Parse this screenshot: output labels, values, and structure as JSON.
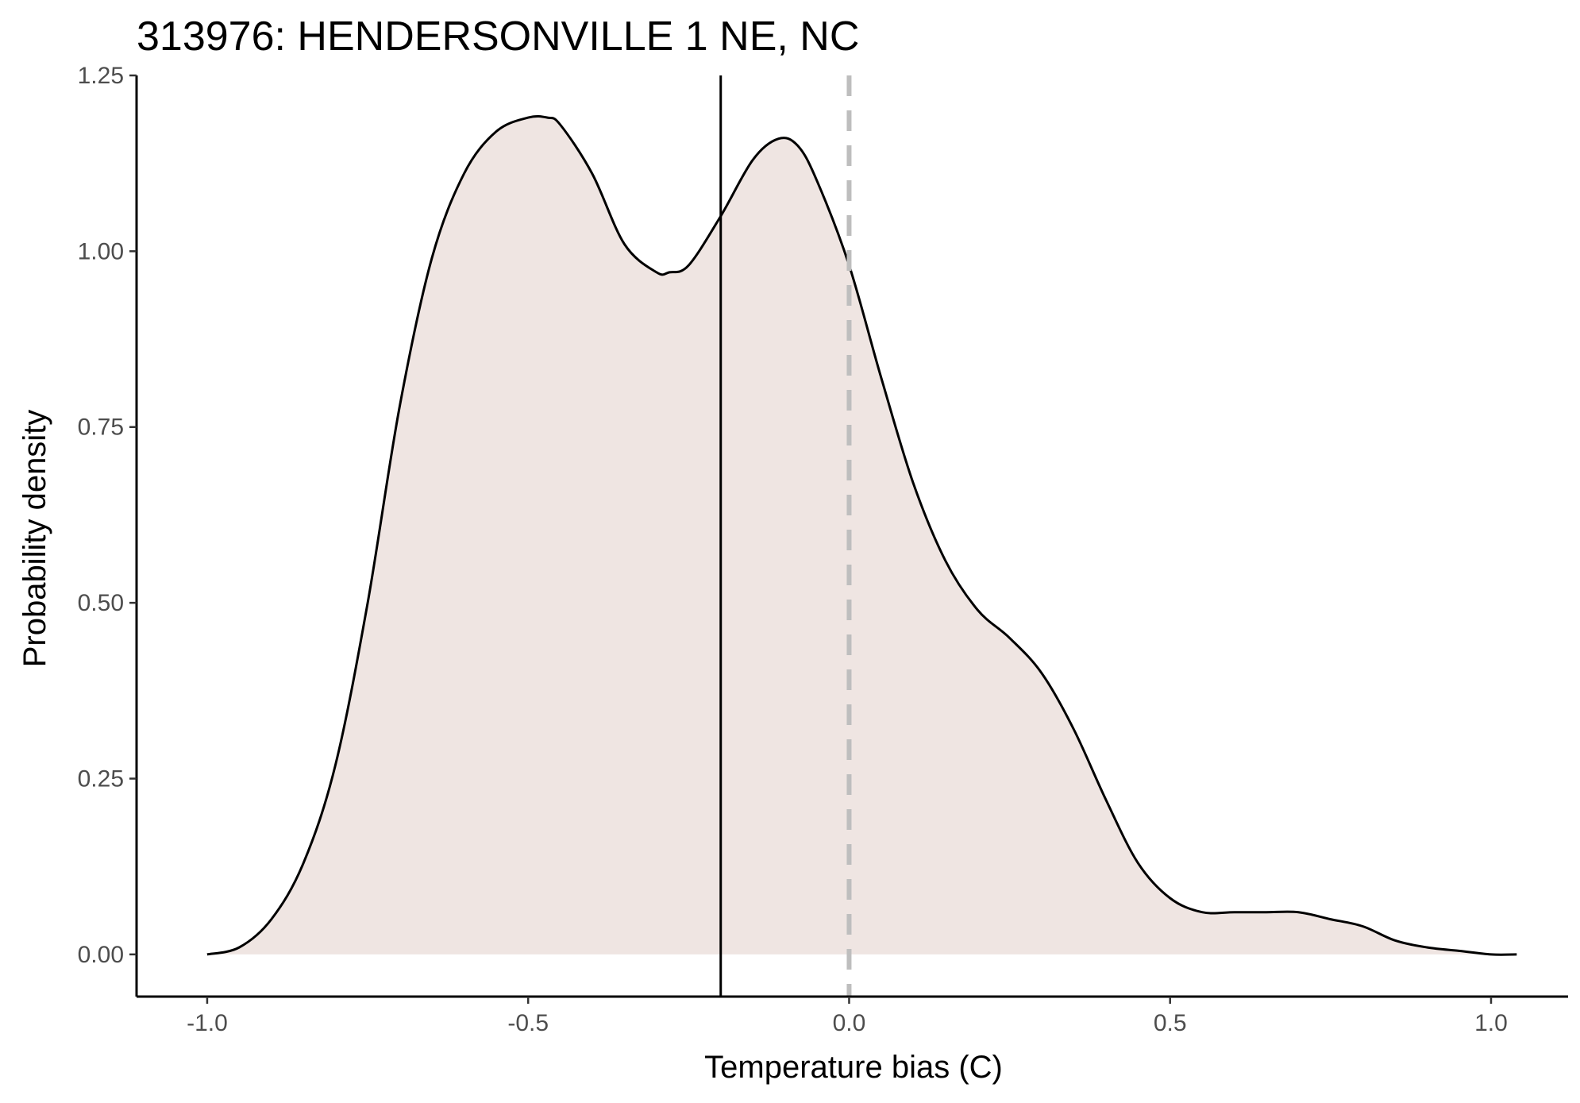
{
  "chart_data": {
    "type": "area",
    "title": "313976: HENDERSONVILLE 1 NE, NC",
    "xlabel": "Temperature bias (C)",
    "ylabel": "Probability density",
    "xlim": [
      -1.11,
      1.12
    ],
    "ylim": [
      -0.06,
      1.25
    ],
    "x_ticks": [
      -1.0,
      -0.5,
      0.0,
      0.5,
      1.0
    ],
    "x_tick_labels": [
      "-1.0",
      "-0.5",
      "0.0",
      "0.5",
      "1.0"
    ],
    "y_ticks": [
      0.0,
      0.25,
      0.5,
      0.75,
      1.0,
      1.25
    ],
    "y_tick_labels": [
      "0.00",
      "0.25",
      "0.50",
      "0.75",
      "1.00",
      "1.25"
    ],
    "grid": false,
    "legend": "none",
    "series": [
      {
        "x": [
          -1.0,
          -0.95,
          -0.9,
          -0.85,
          -0.8,
          -0.75,
          -0.7,
          -0.65,
          -0.6,
          -0.55,
          -0.5,
          -0.47,
          -0.45,
          -0.4,
          -0.35,
          -0.3,
          -0.28,
          -0.25,
          -0.2,
          -0.15,
          -0.11,
          -0.08,
          -0.05,
          0.0,
          0.05,
          0.1,
          0.15,
          0.2,
          0.25,
          0.3,
          0.35,
          0.4,
          0.45,
          0.5,
          0.55,
          0.6,
          0.65,
          0.7,
          0.75,
          0.8,
          0.85,
          0.9,
          0.95,
          1.0,
          1.04
        ],
        "y": [
          0.0,
          0.01,
          0.05,
          0.13,
          0.27,
          0.5,
          0.78,
          0.99,
          1.11,
          1.17,
          1.19,
          1.19,
          1.18,
          1.11,
          1.01,
          0.97,
          0.97,
          0.98,
          1.05,
          1.13,
          1.16,
          1.15,
          1.1,
          0.98,
          0.82,
          0.67,
          0.56,
          0.49,
          0.45,
          0.4,
          0.32,
          0.22,
          0.13,
          0.08,
          0.06,
          0.06,
          0.06,
          0.06,
          0.05,
          0.04,
          0.02,
          0.01,
          0.005,
          0.0,
          0.0
        ]
      }
    ],
    "reference_lines": [
      {
        "x": -0.2,
        "style": "solid",
        "color": "#000000"
      },
      {
        "x": 0.0,
        "style": "dashed",
        "color": "#bebebe"
      }
    ],
    "fill_color": "#efe5e2",
    "line_color": "#000000"
  }
}
